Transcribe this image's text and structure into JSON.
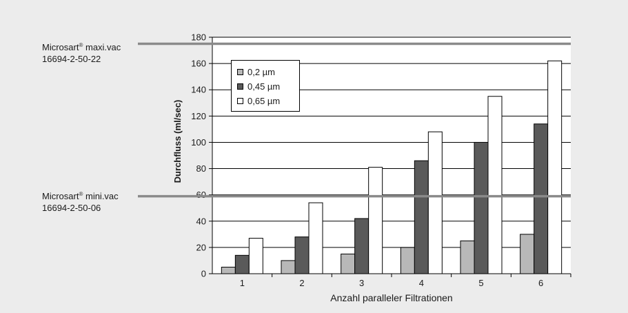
{
  "colors": {
    "background": "#ececec",
    "plot_background": "#ffffff",
    "series_0_2": "#b8b8b8",
    "series_0_45": "#5a5a5a",
    "series_0_65": "#ffffff",
    "reference_line": "#8a8a8a"
  },
  "reference_lines": [
    {
      "name": "Microsart",
      "reg": "®",
      "product": "maxi.vac",
      "code": "16694-2-50-22",
      "value": 175
    },
    {
      "name": "Microsart",
      "reg": "®",
      "product": "mini.vac",
      "code": "16694-2-50-06",
      "value": 59
    }
  ],
  "chart_data": {
    "type": "bar",
    "title": "",
    "xlabel": "Anzahl paralleler Filtrationen",
    "ylabel": "Durchfluss (ml/sec)",
    "categories": [
      "1",
      "2",
      "3",
      "4",
      "5",
      "6"
    ],
    "ylim": [
      0,
      180
    ],
    "yticks": [
      0,
      20,
      40,
      60,
      80,
      100,
      120,
      140,
      160,
      180
    ],
    "grid": true,
    "legend_position": "top-left",
    "series": [
      {
        "name": "0,2 µm",
        "values": [
          5,
          10,
          15,
          20,
          25,
          30
        ]
      },
      {
        "name": "0,45 µm",
        "values": [
          14,
          28,
          42,
          86,
          100,
          114
        ]
      },
      {
        "name": "0,65 µm",
        "values": [
          27,
          54,
          81,
          108,
          135,
          162
        ]
      }
    ]
  }
}
